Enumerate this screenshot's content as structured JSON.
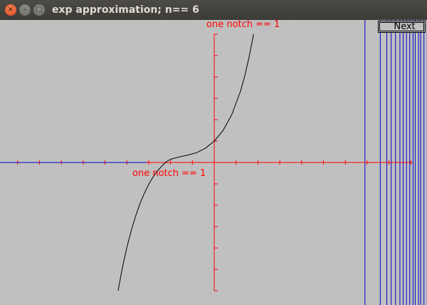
{
  "window": {
    "title": "exp approximation; n== 6",
    "close_glyph": "×",
    "minimize_glyph": "–",
    "maximize_glyph": "□"
  },
  "next_button": {
    "label": "Next"
  },
  "chart_data": {
    "type": "line",
    "annotations": [
      "one notch == 1",
      "one notch == 1"
    ],
    "x_notch_unit": 1,
    "y_notch_unit": 1,
    "xlim": [
      -10,
      9
    ],
    "ylim": [
      -6,
      6
    ],
    "grid": false,
    "axis_color": "#ff0000",
    "curve_color": "#000000",
    "series": [
      {
        "x": [
          -4.4,
          -4.2,
          -4.0,
          -3.8,
          -3.6,
          -3.4,
          -3.2,
          -3.0,
          -2.8,
          -2.6,
          -2.4,
          -2.2,
          -2.0,
          -1.6,
          -1.2,
          -0.8,
          -0.4,
          0.0,
          0.4,
          0.8,
          1.2,
          1.4,
          1.6,
          1.8
        ],
        "y": [
          -6.0,
          -4.9,
          -3.98,
          -3.2,
          -2.51,
          -1.93,
          -1.44,
          -1.03,
          -0.68,
          -0.4,
          -0.17,
          0.03,
          0.15,
          0.26,
          0.35,
          0.46,
          0.67,
          1.0,
          1.49,
          2.23,
          3.32,
          4.05,
          4.95,
          6.0
        ]
      }
    ],
    "vertical_lines_x": [
      6.9,
      7.6,
      7.9,
      8.1,
      8.3,
      8.5,
      8.65,
      8.8,
      8.95,
      9.1,
      9.2,
      9.35,
      9.45,
      9.6,
      9.75,
      9.9
    ],
    "vertical_line_color": "#0000cc",
    "horizontal_line": {
      "y": 0,
      "x_from": -10,
      "x_to": -3.1,
      "color": "#0000cc"
    }
  }
}
